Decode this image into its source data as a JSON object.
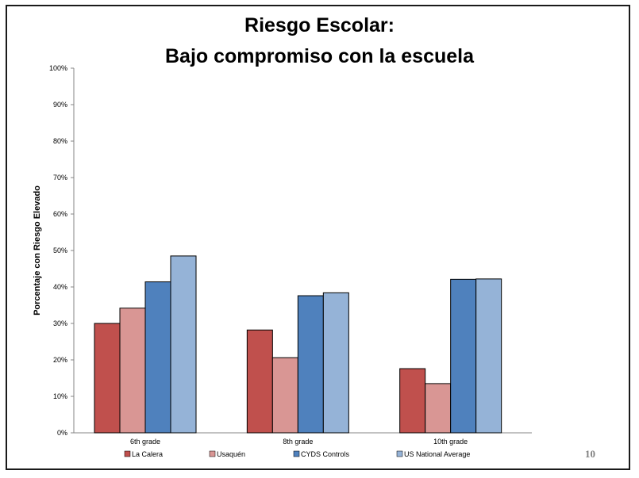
{
  "slide": {
    "title_line1": "Riesgo Escolar:",
    "title_line2": "Bajo compromiso con la escuela",
    "page_number": "10"
  },
  "chart_data": {
    "type": "bar",
    "title": "Riesgo Escolar: Bajo compromiso con la escuela",
    "categories": [
      "6th grade",
      "8th grade",
      "10th grade"
    ],
    "series": [
      {
        "name": "La Calera",
        "color": "#c0504d",
        "values": [
          30,
          28.2,
          17.6
        ]
      },
      {
        "name": "Usaquén",
        "color": "#d99694",
        "values": [
          34.2,
          20.6,
          13.5
        ]
      },
      {
        "name": "CYDS Controls",
        "color": "#4f81bd",
        "values": [
          41.4,
          37.6,
          42.1
        ]
      },
      {
        "name": "US National Average",
        "color": "#95b3d7",
        "values": [
          48.5,
          38.4,
          42.2
        ]
      }
    ],
    "xlabel": "",
    "ylabel": "Porcentaje con Riesgo Elevado",
    "ylim": [
      0,
      100
    ],
    "ytick_labels": [
      "0%",
      "10%",
      "20%",
      "30%",
      "40%",
      "50%",
      "60%",
      "70%",
      "80%",
      "90%",
      "100%"
    ],
    "grid": false,
    "legend_position": "bottom"
  }
}
